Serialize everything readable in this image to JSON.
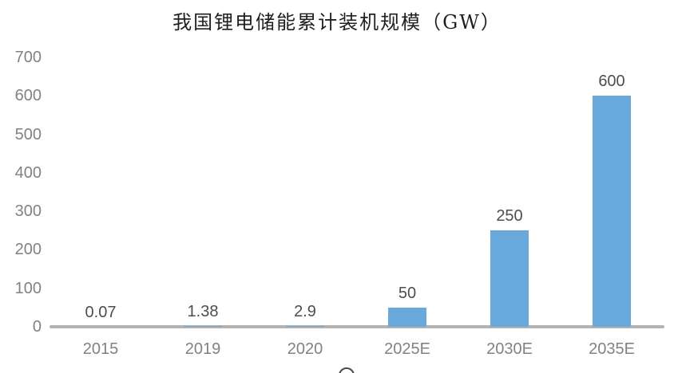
{
  "chart_data": {
    "type": "bar",
    "title": "我国锂电储能累计装机规模（GW）",
    "categories": [
      "2015",
      "2019",
      "2020",
      "2025E",
      "2030E",
      "2035E"
    ],
    "values": [
      0.07,
      1.38,
      2.9,
      50,
      250,
      600
    ],
    "data_labels": [
      "0.07",
      "1.38",
      "2.9",
      "50",
      "250",
      "600"
    ],
    "xlabel": "",
    "ylabel": "",
    "ylim": [
      0,
      700
    ],
    "yticks": [
      0,
      100,
      200,
      300,
      400,
      500,
      600,
      700
    ],
    "grid": false,
    "legend": "none",
    "colors": {
      "bar": "#69A8DA",
      "axis_text": "#828282",
      "data_label_text": "#4d4d4d",
      "baseline": "#b3b3b3",
      "title_text": "#1f1f1f"
    }
  }
}
